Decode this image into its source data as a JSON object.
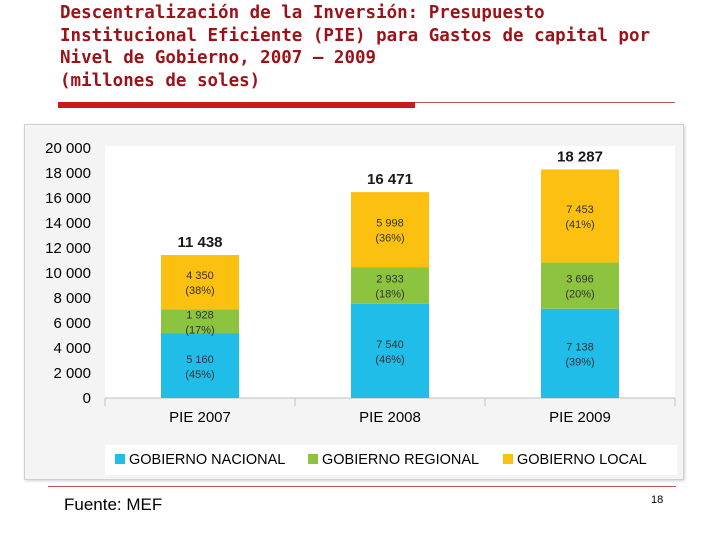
{
  "slide": {
    "title_lines": [
      "Descentralización de la Inversión: Presupuesto",
      "Institucional Eficiente (PIE) para Gastos de capital por",
      "Nivel de Gobierno, 2007 – 2009",
      "(millones de soles)"
    ],
    "source": "Fuente: MEF",
    "page_number": "18"
  },
  "chart_data": {
    "type": "bar",
    "stacked": true,
    "title": "Descentralización de la Inversión: Presupuesto Institucional Eficiente (PIE) para Gastos de capital por Nivel de Gobierno, 2007 – 2009",
    "ylabel": "millones de soles",
    "ylim": [
      0,
      20000
    ],
    "y_ticks": [
      {
        "value": 0,
        "label": "0"
      },
      {
        "value": 2000,
        "label": "2 000"
      },
      {
        "value": 4000,
        "label": "4 000"
      },
      {
        "value": 6000,
        "label": "6 000"
      },
      {
        "value": 8000,
        "label": "8 000"
      },
      {
        "value": 10000,
        "label": "10 000"
      },
      {
        "value": 12000,
        "label": "12 000"
      },
      {
        "value": 14000,
        "label": "14 000"
      },
      {
        "value": 16000,
        "label": "16 000"
      },
      {
        "value": 18000,
        "label": "18 000"
      },
      {
        "value": 20000,
        "label": "20 000"
      }
    ],
    "categories": [
      "PIE 2007",
      "PIE 2008",
      "PIE 2009"
    ],
    "series": [
      {
        "name": "GOBIERNO NACIONAL",
        "color": "#1fbde8",
        "values": [
          5160,
          7540,
          7138
        ],
        "value_labels": [
          "5 160",
          "7 540",
          "7 138"
        ],
        "share_labels": [
          "(45%)",
          "(46%)",
          "(39%)"
        ]
      },
      {
        "name": "GOBIERNO REGIONAL",
        "color": "#8dc43f",
        "values": [
          1928,
          2933,
          3696
        ],
        "value_labels": [
          "1 928",
          "2 933",
          "3 696"
        ],
        "share_labels": [
          "(17%)",
          "(18%)",
          "(20%)"
        ]
      },
      {
        "name": "GOBIERNO LOCAL",
        "color": "#fcc010",
        "values": [
          4350,
          5998,
          7453
        ],
        "value_labels": [
          "4 350",
          "5 998",
          "7 453"
        ],
        "share_labels": [
          "(38%)",
          "(36%)",
          "(41%)"
        ]
      }
    ],
    "totals": [
      11438,
      16471,
      18287
    ],
    "total_labels": [
      "11 438",
      "16 471",
      "18 287"
    ],
    "legend_position": "bottom",
    "grid": false
  }
}
